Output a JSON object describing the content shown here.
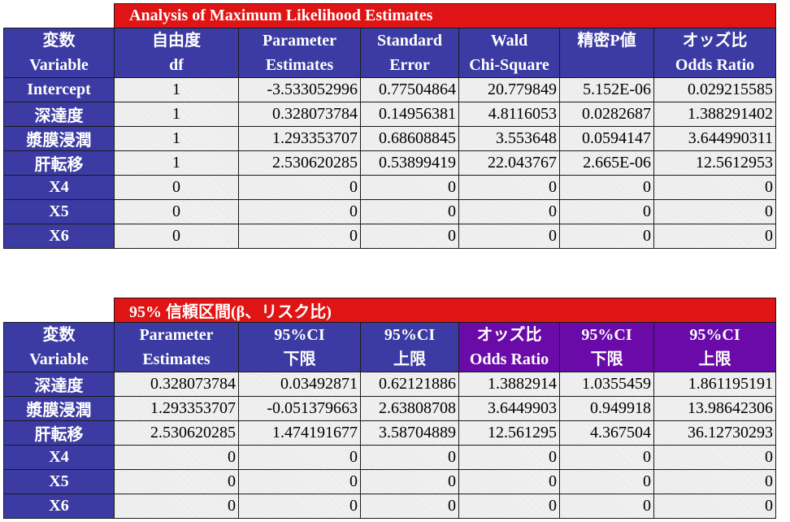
{
  "table1": {
    "title": "Analysis of Maximum Likelihood Estimates",
    "headers": [
      [
        "変数",
        "Variable"
      ],
      [
        "自由度",
        "df"
      ],
      [
        "Parameter",
        "Estimates"
      ],
      [
        "Standard",
        "Error"
      ],
      [
        "Wald",
        "Chi-Square"
      ],
      [
        "精密P値",
        ""
      ],
      [
        "オッズ比",
        "Odds Ratio"
      ]
    ],
    "rows": [
      [
        "Intercept",
        "1",
        "-3.533052996",
        "0.77504864",
        "20.779849",
        "5.152E-06",
        "0.029215585"
      ],
      [
        "深達度",
        "1",
        "0.328073784",
        "0.14956381",
        "4.8116053",
        "0.0282687",
        "1.388291402"
      ],
      [
        "漿膜浸潤",
        "1",
        "1.293353707",
        "0.68608845",
        "3.553648",
        "0.0594147",
        "3.644990311"
      ],
      [
        "肝転移",
        "1",
        "2.530620285",
        "0.53899419",
        "22.043767",
        "2.665E-06",
        "12.5612953"
      ],
      [
        "X4",
        "0",
        "0",
        "0",
        "0",
        "0",
        "0"
      ],
      [
        "X5",
        "0",
        "0",
        "0",
        "0",
        "0",
        "0"
      ],
      [
        "X6",
        "0",
        "0",
        "0",
        "0",
        "0",
        "0"
      ]
    ]
  },
  "table2": {
    "title": "95% 信頼区間(β、リスク比)",
    "headers": [
      [
        "変数",
        "Variable"
      ],
      [
        "Parameter",
        "Estimates"
      ],
      [
        "95%CI",
        "下限"
      ],
      [
        "95%CI",
        "上限"
      ],
      [
        "オッズ比",
        "Odds Ratio"
      ],
      [
        "95%CI",
        "下限"
      ],
      [
        "95%CI",
        "上限"
      ]
    ],
    "rows": [
      [
        "深達度",
        "0.328073784",
        "0.03492871",
        "0.62121886",
        "1.3882914",
        "1.0355459",
        "1.861195191"
      ],
      [
        "漿膜浸潤",
        "1.293353707",
        "-0.051379663",
        "2.63808708",
        "3.6449903",
        "0.949918",
        "13.98642306"
      ],
      [
        "肝転移",
        "2.530620285",
        "1.474191677",
        "3.58704889",
        "12.561295",
        "4.367504",
        "36.12730293"
      ],
      [
        "X4",
        "0",
        "0",
        "0",
        "0",
        "0",
        "0"
      ],
      [
        "X5",
        "0",
        "0",
        "0",
        "0",
        "0",
        "0"
      ],
      [
        "X6",
        "0",
        "0",
        "0",
        "0",
        "0",
        "0"
      ]
    ]
  },
  "colors": {
    "title_red": "#e01414",
    "header_blue": "#3b3ba3",
    "header_purple": "#6a0aa8",
    "cell_bg": "#f4f4f4"
  }
}
